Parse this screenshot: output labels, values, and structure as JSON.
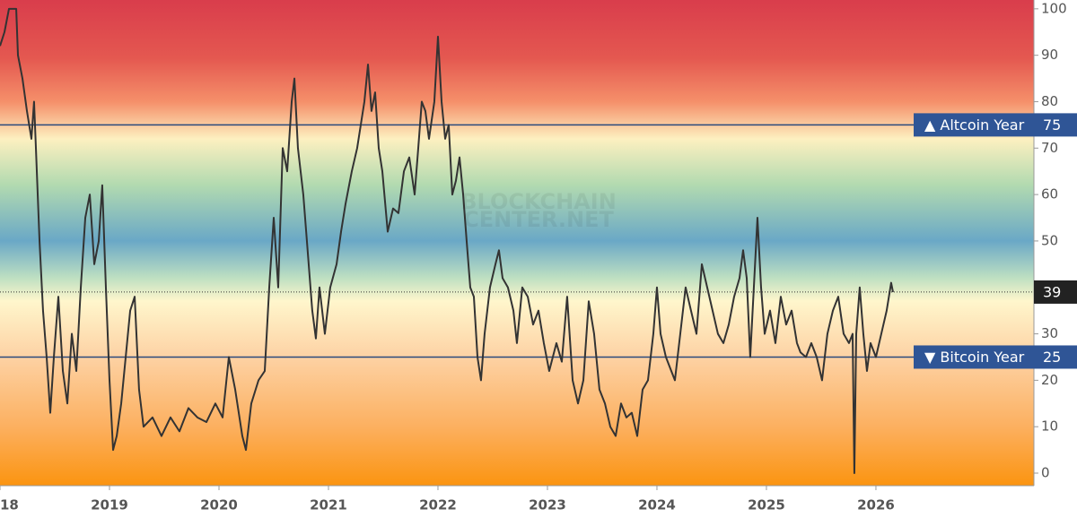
{
  "chart_data": {
    "type": "line",
    "watermark": [
      "BLOCKCHAIN",
      "CENTER.NET"
    ],
    "x": [
      2018.0,
      2018.041,
      2018.082,
      2018.148,
      2018.164,
      2018.205,
      2018.246,
      2018.287,
      2018.311,
      2018.328,
      2018.361,
      2018.393,
      2018.426,
      2018.459,
      2018.492,
      2018.533,
      2018.574,
      2018.615,
      2018.656,
      2018.697,
      2018.738,
      2018.779,
      2018.82,
      2018.861,
      2018.902,
      2018.934,
      2018.967,
      2019.0,
      2019.033,
      2019.066,
      2019.107,
      2019.148,
      2019.189,
      2019.23,
      2019.27,
      2019.311,
      2019.393,
      2019.475,
      2019.557,
      2019.639,
      2019.721,
      2019.803,
      2019.885,
      2019.967,
      2020.033,
      2020.09,
      2020.148,
      2020.213,
      2020.246,
      2020.295,
      2020.361,
      2020.418,
      2020.459,
      2020.5,
      2020.541,
      2020.582,
      2020.623,
      2020.664,
      2020.689,
      2020.721,
      2020.77,
      2020.803,
      2020.852,
      2020.885,
      2020.918,
      2020.967,
      2021.016,
      2021.074,
      2021.115,
      2021.156,
      2021.213,
      2021.262,
      2021.295,
      2021.328,
      2021.361,
      2021.393,
      2021.426,
      2021.459,
      2021.492,
      2021.541,
      2021.59,
      2021.639,
      2021.689,
      2021.738,
      2021.787,
      2021.82,
      2021.852,
      2021.885,
      2021.918,
      2021.967,
      2022.0,
      2022.033,
      2022.066,
      2022.098,
      2022.131,
      2022.164,
      2022.197,
      2022.23,
      2022.262,
      2022.295,
      2022.328,
      2022.361,
      2022.393,
      2022.426,
      2022.475,
      2022.525,
      2022.557,
      2022.59,
      2022.639,
      2022.689,
      2022.721,
      2022.77,
      2022.82,
      2022.869,
      2022.918,
      2022.967,
      2023.016,
      2023.082,
      2023.131,
      2023.18,
      2023.23,
      2023.279,
      2023.328,
      2023.377,
      2023.426,
      2023.475,
      2023.525,
      2023.574,
      2023.623,
      2023.672,
      2023.721,
      2023.77,
      2023.82,
      2023.869,
      2023.918,
      2023.967,
      2024.0,
      2024.033,
      2024.082,
      2024.131,
      2024.164,
      2024.213,
      2024.262,
      2024.311,
      2024.361,
      2024.41,
      2024.459,
      2024.508,
      2024.557,
      2024.607,
      2024.656,
      2024.705,
      2024.754,
      2024.787,
      2024.82,
      2024.852,
      2024.885,
      2024.918,
      2024.951,
      2024.984,
      2025.033,
      2025.082,
      2025.131,
      2025.18,
      2025.23,
      2025.279,
      2025.311,
      2025.361,
      2025.41,
      2025.459,
      2025.508,
      2025.557,
      2025.607,
      2025.656,
      2025.705,
      2025.754,
      2025.787,
      2025.803,
      2025.82,
      2025.852,
      2025.885,
      2025.918,
      2025.951,
      2026.0,
      2026.049,
      2026.098,
      2026.139,
      2026.156
    ],
    "values": [
      92,
      95,
      100,
      100,
      90,
      85,
      78,
      72,
      80,
      70,
      50,
      35,
      25,
      13,
      25,
      38,
      22,
      15,
      30,
      22,
      40,
      55,
      60,
      45,
      50,
      62,
      40,
      20,
      5,
      8,
      15,
      25,
      35,
      38,
      18,
      10,
      12,
      8,
      12,
      9,
      14,
      12,
      11,
      15,
      12,
      25,
      18,
      8,
      5,
      15,
      20,
      22,
      40,
      55,
      40,
      70,
      65,
      80,
      85,
      70,
      60,
      50,
      35,
      29,
      40,
      30,
      40,
      45,
      52,
      58,
      65,
      70,
      75,
      80,
      88,
      78,
      82,
      70,
      65,
      52,
      57,
      56,
      65,
      68,
      60,
      70,
      80,
      78,
      72,
      80,
      94,
      80,
      72,
      75,
      60,
      63,
      68,
      60,
      50,
      40,
      38,
      25,
      20,
      30,
      40,
      45,
      48,
      42,
      40,
      35,
      28,
      40,
      38,
      32,
      35,
      28,
      22,
      28,
      24,
      38,
      20,
      15,
      20,
      37,
      30,
      18,
      15,
      10,
      8,
      15,
      12,
      13,
      8,
      18,
      20,
      30,
      40,
      30,
      25,
      22,
      20,
      30,
      40,
      35,
      30,
      45,
      40,
      35,
      30,
      28,
      32,
      38,
      42,
      48,
      42,
      25,
      40,
      55,
      40,
      30,
      35,
      28,
      38,
      32,
      35,
      28,
      26,
      25,
      28,
      25,
      20,
      30,
      35,
      38,
      30,
      28,
      30,
      0,
      30,
      40,
      30,
      22,
      28,
      25,
      30,
      35,
      41,
      39
    ],
    "color": "#333333",
    "xlim": [
      2018,
      2027.443
    ],
    "xticks": [
      {
        "value": 2018,
        "label": "18"
      },
      2019,
      2020,
      2021,
      2022,
      2023,
      2024,
      2025,
      2026
    ],
    "ylim": [
      -2.7,
      101.9
    ],
    "yticks": [
      0,
      10,
      20,
      30,
      50,
      60,
      70,
      80,
      90,
      100
    ],
    "reference_lines": [
      {
        "value": 75,
        "label": "▲ Altcoin Year"
      },
      {
        "value": 25,
        "label": "▼ Bitcoin Year"
      }
    ],
    "current_value": 39
  }
}
